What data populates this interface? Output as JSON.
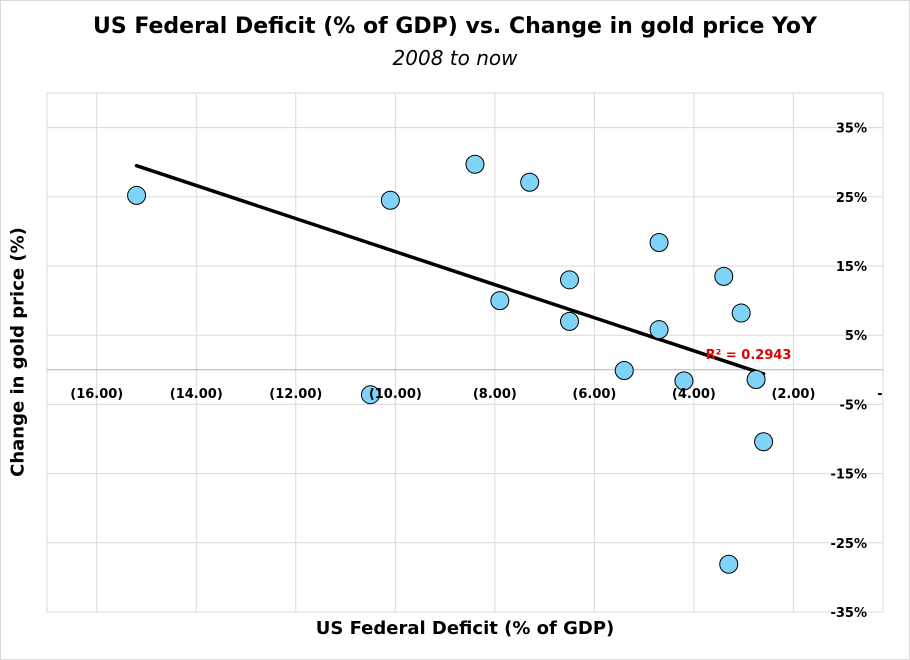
{
  "chart_data": {
    "type": "scatter",
    "title": "US Federal Deficit (% of GDP) vs. Change in gold price YoY",
    "subtitle": "2008 to now",
    "xlabel": "US Federal Deficit (% of GDP)",
    "ylabel": "Change in gold price (%)",
    "xlim": [
      -17,
      -0.2
    ],
    "ylim": [
      -35,
      40
    ],
    "x_ticks": [
      -16,
      -14,
      -12,
      -10,
      -8,
      -6,
      -4,
      -2
    ],
    "x_tick_labels": [
      "(16.00)",
      "(14.00)",
      "(12.00)",
      "(10.00)",
      "(8.00)",
      "(6.00)",
      "(4.00)",
      "(2.00)"
    ],
    "x_axis_end_label": "-",
    "y_ticks": [
      35,
      25,
      15,
      5,
      -5,
      -15,
      -25,
      -35
    ],
    "y_tick_labels": [
      "35%",
      "25%",
      "15%",
      "5%",
      "-5%",
      "-15%",
      "-25%",
      "-35%"
    ],
    "grid": true,
    "marker_color": "#7fd3f7",
    "trendline_color": "#000000",
    "series": [
      {
        "points": [
          {
            "x": -15.2,
            "y": 25.2
          },
          {
            "x": -10.1,
            "y": 24.5
          },
          {
            "x": -10.5,
            "y": -3.6
          },
          {
            "x": -8.4,
            "y": 29.7
          },
          {
            "x": -7.9,
            "y": 10.0
          },
          {
            "x": -7.3,
            "y": 27.1
          },
          {
            "x": -6.5,
            "y": 13.0
          },
          {
            "x": -6.5,
            "y": 7.0
          },
          {
            "x": -5.4,
            "y": -0.1
          },
          {
            "x": -4.7,
            "y": 18.4
          },
          {
            "x": -4.7,
            "y": 5.8
          },
          {
            "x": -4.2,
            "y": -1.6
          },
          {
            "x": -3.4,
            "y": 13.5
          },
          {
            "x": -3.05,
            "y": 8.2
          },
          {
            "x": -2.75,
            "y": -1.4
          },
          {
            "x": -2.6,
            "y": -10.4
          },
          {
            "x": -3.3,
            "y": -28.1
          }
        ]
      }
    ],
    "trendline": {
      "x": [
        -15.2,
        -2.6
      ],
      "y": [
        29.5,
        -0.6
      ],
      "label": "R² = 0.2943"
    }
  }
}
